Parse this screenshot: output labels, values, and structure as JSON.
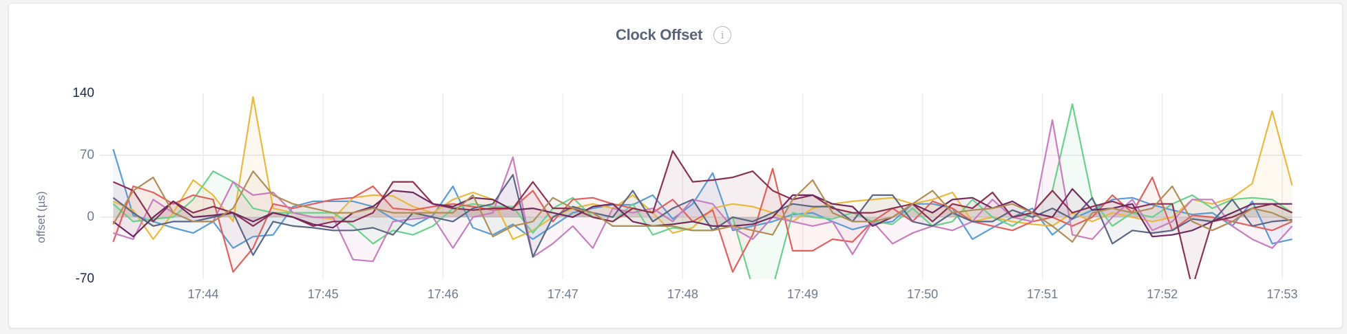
{
  "header": {
    "title": "Clock Offset",
    "info_icon": "info-circle-icon"
  },
  "chart_data": {
    "type": "area",
    "title": "Clock Offset",
    "xlabel": "",
    "ylabel": "offset (µs)",
    "ylim": [
      -70,
      140
    ],
    "yticks": [
      {
        "value": 140,
        "label": "140",
        "color": "#1c2a4a"
      },
      {
        "value": 70,
        "label": "70",
        "color": "#6f7a8f"
      },
      {
        "value": 0,
        "label": "0",
        "color": "#6f7a8f"
      },
      {
        "value": -70,
        "label": "-70",
        "color": "#1c2a4a"
      }
    ],
    "xticks": [
      "17:44",
      "17:45",
      "17:46",
      "17:47",
      "17:48",
      "17:49",
      "17:50",
      "17:51",
      "17:52",
      "17:53"
    ],
    "grid": true,
    "legend": "none",
    "x": [
      "17:43:15",
      "17:43:25",
      "17:43:35",
      "17:43:45",
      "17:43:55",
      "17:44:05",
      "17:44:15",
      "17:44:25",
      "17:44:35",
      "17:44:45",
      "17:44:55",
      "17:45:05",
      "17:45:15",
      "17:45:25",
      "17:45:35",
      "17:45:45",
      "17:45:55",
      "17:46:05",
      "17:46:15",
      "17:46:25",
      "17:46:35",
      "17:46:45",
      "17:46:55",
      "17:47:05",
      "17:47:15",
      "17:47:25",
      "17:47:35",
      "17:47:45",
      "17:47:55",
      "17:48:05",
      "17:48:15",
      "17:48:25",
      "17:48:35",
      "17:48:45",
      "17:48:55",
      "17:49:05",
      "17:49:15",
      "17:49:25",
      "17:49:35",
      "17:49:45",
      "17:49:55",
      "17:50:05",
      "17:50:15",
      "17:50:25",
      "17:50:35",
      "17:50:45",
      "17:50:55",
      "17:51:05",
      "17:51:15",
      "17:51:25",
      "17:51:35",
      "17:51:45",
      "17:51:55",
      "17:52:05",
      "17:52:15",
      "17:52:25",
      "17:52:35",
      "17:52:45",
      "17:52:55",
      "17:53:05"
    ],
    "series": [
      {
        "color": "#5a9bd4",
        "values": [
          77,
          2,
          -5,
          -12,
          -18,
          -5,
          -35,
          -22,
          -20,
          12,
          18,
          18,
          18,
          12,
          -2,
          -10,
          2,
          35,
          -12,
          -20,
          -8,
          -25,
          -10,
          5,
          10,
          14,
          14,
          25,
          -2,
          15,
          50,
          -15,
          -10,
          -5,
          3,
          5,
          -5,
          -14,
          -8,
          -5,
          15,
          15,
          10,
          -25,
          -12,
          0,
          10,
          -20,
          -2,
          8,
          20,
          22,
          14,
          8,
          3,
          5,
          -10,
          18,
          -30,
          -25
        ]
      },
      {
        "color": "#e9b840",
        "values": [
          18,
          8,
          -25,
          5,
          42,
          25,
          -5,
          136,
          10,
          5,
          0,
          -2,
          22,
          25,
          24,
          12,
          5,
          20,
          28,
          20,
          -25,
          -15,
          0,
          10,
          15,
          10,
          25,
          5,
          -18,
          -12,
          10,
          15,
          12,
          5,
          -5,
          10,
          15,
          18,
          20,
          22,
          15,
          20,
          28,
          -5,
          0,
          -5,
          -8,
          -10,
          5,
          -5,
          5,
          0,
          -5,
          0,
          20,
          15,
          22,
          38,
          120,
          36
        ]
      },
      {
        "color": "#6bd08a",
        "values": [
          15,
          -5,
          -2,
          0,
          20,
          52,
          40,
          10,
          5,
          5,
          5,
          5,
          -10,
          -30,
          -15,
          -20,
          -10,
          10,
          15,
          12,
          12,
          -18,
          10,
          22,
          0,
          -5,
          15,
          -20,
          -12,
          -15,
          -15,
          0,
          -80,
          -80,
          5,
          0,
          -2,
          5,
          -5,
          -8,
          10,
          -10,
          -5,
          20,
          0,
          -10,
          5,
          30,
          128,
          20,
          -10,
          5,
          0,
          15,
          25,
          10,
          20,
          22,
          20,
          5
        ]
      },
      {
        "color": "#e0605e",
        "values": [
          -28,
          35,
          28,
          15,
          25,
          20,
          -62,
          -35,
          15,
          10,
          15,
          20,
          22,
          35,
          10,
          8,
          12,
          15,
          12,
          8,
          10,
          30,
          -5,
          20,
          22,
          15,
          10,
          5,
          20,
          -5,
          8,
          -62,
          -20,
          55,
          -38,
          -38,
          -25,
          -28,
          -5,
          10,
          -5,
          18,
          10,
          -5,
          -10,
          -15,
          -5,
          0,
          -10,
          0,
          25,
          5,
          45,
          -15,
          2,
          0,
          -5,
          -10,
          -15,
          -5
        ]
      },
      {
        "color": "#c77dbf",
        "values": [
          -18,
          -25,
          20,
          5,
          -5,
          -5,
          40,
          25,
          28,
          5,
          0,
          0,
          -48,
          -50,
          -5,
          -2,
          0,
          -35,
          0,
          5,
          68,
          -45,
          -30,
          -10,
          -35,
          10,
          5,
          10,
          -5,
          20,
          15,
          -12,
          -25,
          0,
          -5,
          -10,
          -5,
          -42,
          -5,
          -30,
          -18,
          -10,
          -15,
          -5,
          20,
          0,
          -5,
          110,
          -20,
          -25,
          0,
          20,
          -15,
          -5,
          20,
          20,
          -10,
          -25,
          -35,
          -10
        ]
      },
      {
        "color": "#5a6683",
        "values": [
          22,
          5,
          -10,
          -5,
          -5,
          0,
          5,
          -43,
          -5,
          -10,
          -12,
          -15,
          -15,
          -12,
          -20,
          5,
          0,
          -5,
          10,
          15,
          48,
          -45,
          0,
          12,
          5,
          0,
          30,
          -5,
          10,
          20,
          -15,
          0,
          -5,
          5,
          15,
          12,
          12,
          -5,
          25,
          25,
          -5,
          -10,
          5,
          -5,
          -5,
          8,
          0,
          10,
          -2,
          22,
          -30,
          -15,
          -18,
          -15,
          -2,
          -5,
          20,
          -10,
          -5,
          -3
        ]
      },
      {
        "color": "#8a3050",
        "values": [
          40,
          30,
          -5,
          18,
          5,
          12,
          5,
          -10,
          5,
          0,
          -10,
          -5,
          -5,
          5,
          40,
          40,
          15,
          10,
          8,
          10,
          10,
          40,
          10,
          10,
          0,
          -5,
          10,
          5,
          75,
          40,
          42,
          45,
          52,
          30,
          20,
          25,
          10,
          5,
          5,
          10,
          15,
          -5,
          15,
          10,
          28,
          0,
          5,
          30,
          5,
          12,
          18,
          10,
          15,
          15,
          -80,
          -5,
          0,
          10,
          15,
          5
        ]
      },
      {
        "color": "#6e2a5e",
        "values": [
          -5,
          -22,
          0,
          18,
          0,
          2,
          5,
          -5,
          5,
          0,
          -8,
          -12,
          5,
          12,
          30,
          28,
          15,
          12,
          22,
          20,
          8,
          10,
          5,
          0,
          12,
          15,
          -5,
          -10,
          -8,
          -5,
          -10,
          -10,
          -8,
          0,
          25,
          25,
          15,
          12,
          -10,
          0,
          15,
          5,
          20,
          22,
          10,
          18,
          5,
          0,
          32,
          8,
          10,
          15,
          -22,
          -20,
          -15,
          -5,
          5,
          15,
          15,
          15
        ]
      },
      {
        "color": "#b08d57",
        "values": [
          -8,
          30,
          45,
          5,
          -5,
          -5,
          10,
          52,
          25,
          15,
          10,
          5,
          5,
          10,
          5,
          5,
          5,
          5,
          25,
          -22,
          -10,
          -5,
          22,
          10,
          5,
          -10,
          -10,
          -10,
          -10,
          -15,
          -15,
          -10,
          -15,
          -20,
          20,
          42,
          5,
          -5,
          -5,
          0,
          15,
          30,
          5,
          8,
          10,
          15,
          5,
          -10,
          -28,
          5,
          10,
          5,
          10,
          35,
          -5,
          -15,
          -5,
          10,
          5,
          -5
        ]
      }
    ]
  }
}
